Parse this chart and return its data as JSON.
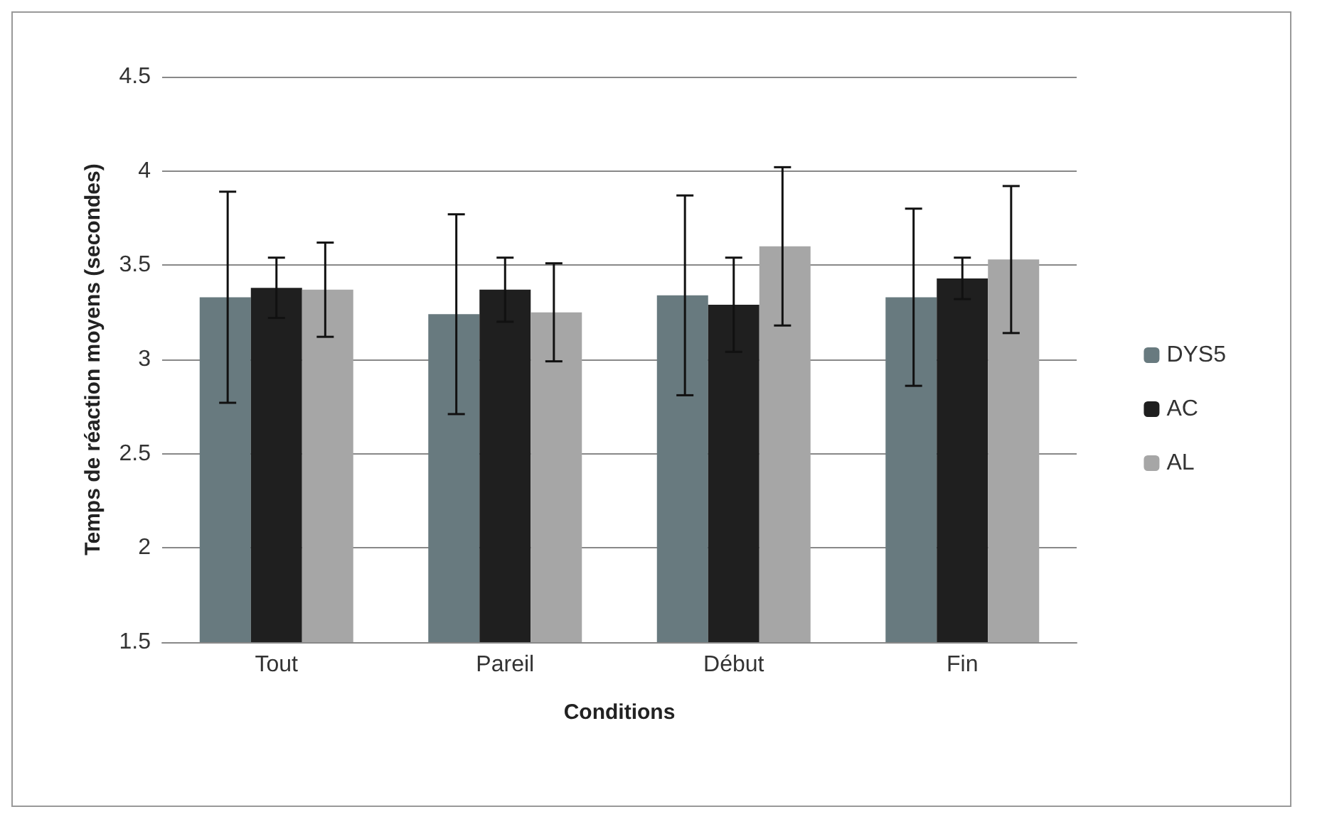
{
  "chart_data": {
    "type": "bar",
    "xlabel": "Conditions",
    "ylabel": "Temps de réaction moyens (secondes)",
    "categories": [
      "Tout",
      "Pareil",
      "Début",
      "Fin"
    ],
    "series": [
      {
        "name": "DYS5",
        "color": "#687a7f",
        "values": [
          3.33,
          3.24,
          3.34,
          3.33
        ],
        "errors": [
          0.56,
          0.53,
          0.53,
          0.47
        ]
      },
      {
        "name": "AC",
        "color": "#1f1f1f",
        "values": [
          3.38,
          3.37,
          3.29,
          3.43
        ],
        "errors": [
          0.16,
          0.17,
          0.25,
          0.11
        ]
      },
      {
        "name": "AL",
        "color": "#a6a6a6",
        "values": [
          3.37,
          3.25,
          3.6,
          3.53
        ],
        "errors": [
          0.25,
          0.26,
          0.42,
          0.39
        ]
      }
    ],
    "ylim": [
      1.5,
      4.5
    ],
    "yticks": [
      1.5,
      2,
      2.5,
      3,
      3.5,
      4,
      4.5
    ],
    "grid": "y",
    "legend": "right"
  }
}
